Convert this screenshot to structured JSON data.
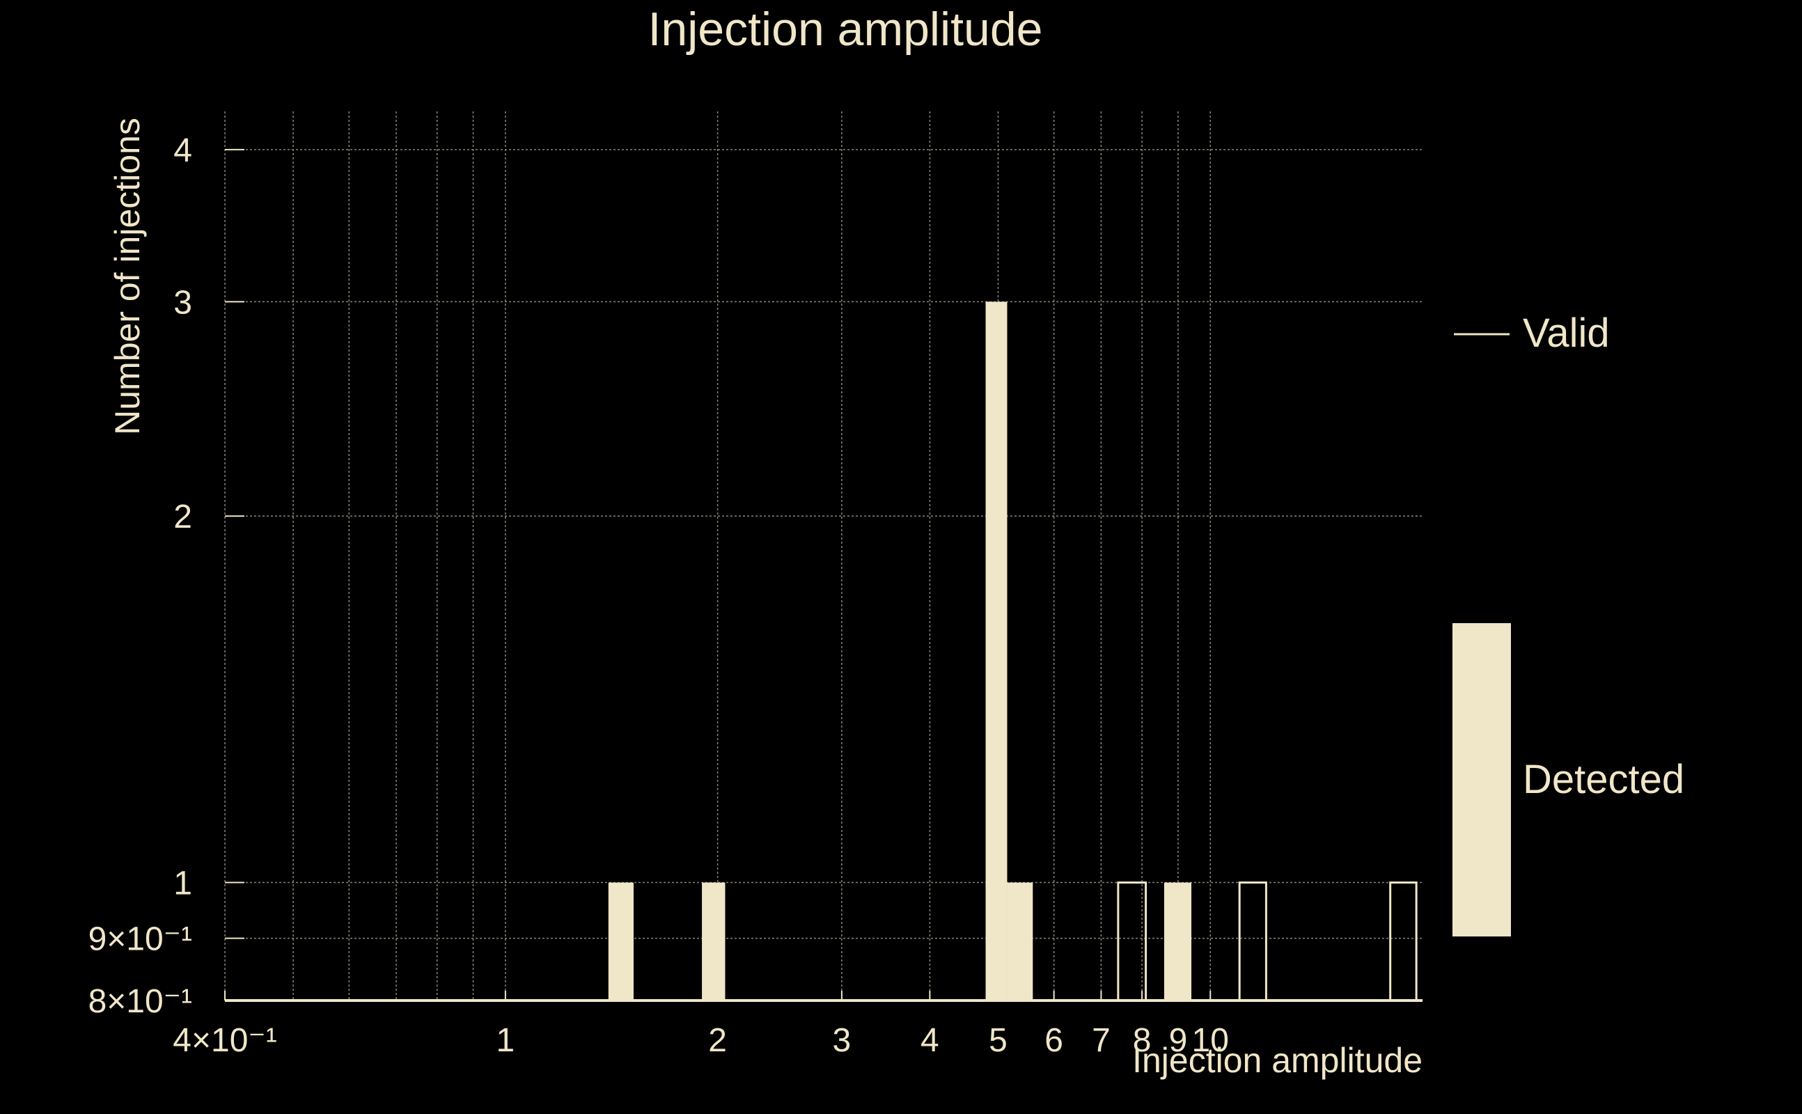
{
  "chart_data": {
    "type": "bar",
    "title": "Injection amplitude",
    "xlabel": "Injection amplitude",
    "ylabel": "Number of injections",
    "xscale": "log",
    "yscale": "log",
    "xlim": [
      0.4,
      20
    ],
    "ylim": [
      0.8,
      4.3
    ],
    "grid": true,
    "x_ticks": [
      {
        "value": 0.4,
        "label": "4×10⁻¹"
      },
      {
        "value": 1,
        "label": "1"
      },
      {
        "value": 2,
        "label": "2"
      },
      {
        "value": 3,
        "label": "3"
      },
      {
        "value": 4,
        "label": "4"
      },
      {
        "value": 5,
        "label": "5"
      },
      {
        "value": 6,
        "label": "6"
      },
      {
        "value": 7,
        "label": "7"
      },
      {
        "value": 8,
        "label": "8"
      },
      {
        "value": 9,
        "label": "9"
      },
      {
        "value": 10,
        "label": "10"
      }
    ],
    "x_minor_ticks": [
      0.5,
      0.6,
      0.7,
      0.8,
      0.9
    ],
    "y_ticks": [
      {
        "value": 0.8,
        "label": "8×10⁻¹"
      },
      {
        "value": 0.9,
        "label": "9×10⁻¹"
      },
      {
        "value": 1,
        "label": "1"
      },
      {
        "value": 2,
        "label": "2"
      },
      {
        "value": 3,
        "label": "3"
      },
      {
        "value": 4,
        "label": "4"
      }
    ],
    "legend_placement": "right",
    "series": [
      {
        "name": "Valid",
        "style": "outline",
        "bins": [
          {
            "x0": 7.4,
            "x1": 8.1,
            "value": 1
          },
          {
            "x0": 11.0,
            "x1": 12.0,
            "value": 1
          },
          {
            "x0": 18.0,
            "x1": 19.6,
            "value": 1
          }
        ]
      },
      {
        "name": "Detected",
        "style": "filled",
        "bins": [
          {
            "x0": 1.4,
            "x1": 1.52,
            "value": 1
          },
          {
            "x0": 1.9,
            "x1": 2.05,
            "value": 1
          },
          {
            "x0": 4.8,
            "x1": 5.15,
            "value": 3
          },
          {
            "x0": 5.15,
            "x1": 5.6,
            "value": 1
          },
          {
            "x0": 8.6,
            "x1": 9.4,
            "value": 1
          }
        ]
      }
    ]
  },
  "colors": {
    "background": "#000000",
    "foreground": "#f0e6c8",
    "grid": "#8a8578"
  }
}
